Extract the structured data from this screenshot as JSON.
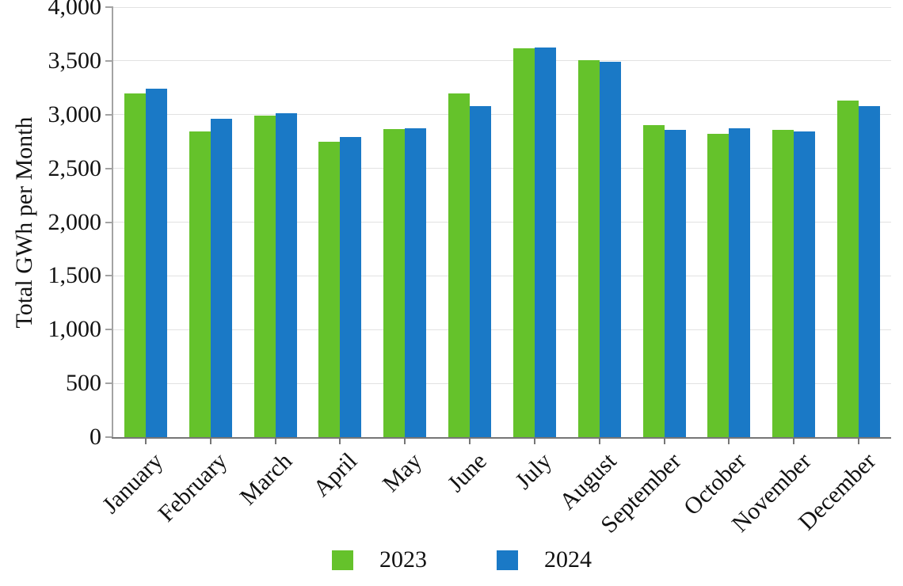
{
  "chart_data": {
    "type": "bar",
    "title": "",
    "xlabel": "",
    "ylabel": "Total GWh per Month",
    "categories": [
      "January",
      "February",
      "March",
      "April",
      "May",
      "June",
      "July",
      "August",
      "September",
      "October",
      "November",
      "December"
    ],
    "series": [
      {
        "name": "2023",
        "color": "#65c22b",
        "values": [
          3200,
          2840,
          2990,
          2745,
          2865,
          3200,
          3620,
          3505,
          2900,
          2825,
          2855,
          3130
        ]
      },
      {
        "name": "2024",
        "color": "#1a79c6",
        "values": [
          3240,
          2960,
          3010,
          2790,
          2870,
          3080,
          3625,
          3490,
          2855,
          2875,
          2845,
          3080
        ]
      }
    ],
    "ylim": [
      0,
      4000
    ],
    "ytick_step": 500,
    "ytick_labels": [
      "0",
      "500",
      "1,000",
      "1,500",
      "2,000",
      "2,500",
      "3,000",
      "3,500",
      "4,000"
    ],
    "grid": true,
    "legend_position": "bottom",
    "x_label_rotation_deg": 45
  }
}
